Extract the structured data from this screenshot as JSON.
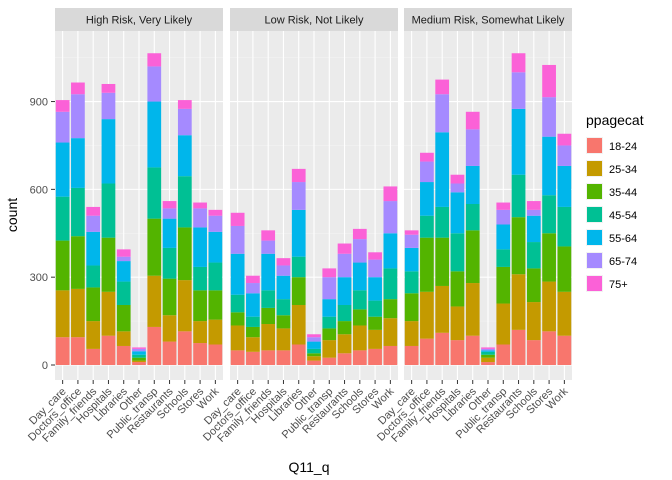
{
  "chart_data": {
    "type": "bar",
    "stacked": true,
    "xlabel": "Q11_q",
    "ylabel": "count",
    "ylim": [
      0,
      1100
    ],
    "yticks": [
      0,
      300,
      600,
      900
    ],
    "grid": true,
    "legend": {
      "title": "ppagecat",
      "placement": "right",
      "entries": [
        {
          "label": "18-24",
          "color": "#F8766D"
        },
        {
          "label": "25-34",
          "color": "#C49A00"
        },
        {
          "label": "35-44",
          "color": "#53B400"
        },
        {
          "label": "45-54",
          "color": "#00C094"
        },
        {
          "label": "55-64",
          "color": "#00B6EB"
        },
        {
          "label": "65-74",
          "color": "#A58AFF"
        },
        {
          "label": "75+",
          "color": "#FB61D7"
        }
      ]
    },
    "categories": [
      "Day_care",
      "Doctors_office",
      "Family_friends",
      "Hospitals",
      "Libraries",
      "Other",
      "Public_transp",
      "Restaurants",
      "Schools",
      "Stores",
      "Work"
    ],
    "panels": [
      {
        "title": "High Risk, Very Likely",
        "stacks": [
          [
            95,
            160,
            170,
            150,
            185,
            105,
            40
          ],
          [
            95,
            165,
            180,
            165,
            170,
            150,
            40
          ],
          [
            55,
            95,
            115,
            75,
            115,
            55,
            30
          ],
          [
            100,
            150,
            185,
            185,
            220,
            90,
            30
          ],
          [
            65,
            50,
            90,
            80,
            70,
            15,
            25
          ],
          [
            10,
            5,
            10,
            10,
            12,
            8,
            5
          ],
          [
            130,
            175,
            195,
            175,
            225,
            120,
            45
          ],
          [
            80,
            90,
            125,
            105,
            100,
            35,
            25
          ],
          [
            115,
            175,
            180,
            175,
            140,
            90,
            30
          ],
          [
            75,
            75,
            105,
            80,
            135,
            65,
            20
          ],
          [
            70,
            85,
            100,
            95,
            105,
            55,
            20
          ]
        ]
      },
      {
        "title": "Low Risk, Not Likely",
        "stacks": [
          [
            50,
            85,
            45,
            60,
            140,
            95,
            45
          ],
          [
            45,
            50,
            35,
            35,
            80,
            35,
            25
          ],
          [
            50,
            90,
            55,
            60,
            125,
            45,
            35
          ],
          [
            50,
            75,
            45,
            55,
            80,
            35,
            25
          ],
          [
            70,
            135,
            95,
            70,
            160,
            95,
            45
          ],
          [
            15,
            15,
            10,
            15,
            25,
            15,
            10
          ],
          [
            25,
            60,
            40,
            40,
            60,
            75,
            30
          ],
          [
            40,
            65,
            45,
            55,
            95,
            80,
            35
          ],
          [
            50,
            85,
            55,
            65,
            95,
            80,
            35
          ],
          [
            55,
            65,
            45,
            55,
            80,
            60,
            25
          ],
          [
            65,
            95,
            65,
            105,
            120,
            110,
            50
          ]
        ]
      },
      {
        "title": "Medium Risk, Somewhat Likely",
        "stacks": [
          [
            65,
            85,
            95,
            75,
            80,
            45,
            15
          ],
          [
            90,
            160,
            185,
            75,
            115,
            70,
            30
          ],
          [
            110,
            160,
            165,
            105,
            255,
            130,
            50
          ],
          [
            85,
            115,
            120,
            130,
            140,
            30,
            30
          ],
          [
            100,
            180,
            180,
            90,
            130,
            125,
            60
          ],
          [
            10,
            15,
            10,
            10,
            5,
            5,
            5
          ],
          [
            70,
            140,
            125,
            60,
            85,
            50,
            25
          ],
          [
            120,
            190,
            195,
            145,
            225,
            125,
            65
          ],
          [
            85,
            130,
            115,
            90,
            90,
            20,
            30
          ],
          [
            115,
            170,
            165,
            130,
            200,
            135,
            110
          ],
          [
            100,
            150,
            155,
            135,
            140,
            70,
            40
          ]
        ]
      }
    ]
  }
}
